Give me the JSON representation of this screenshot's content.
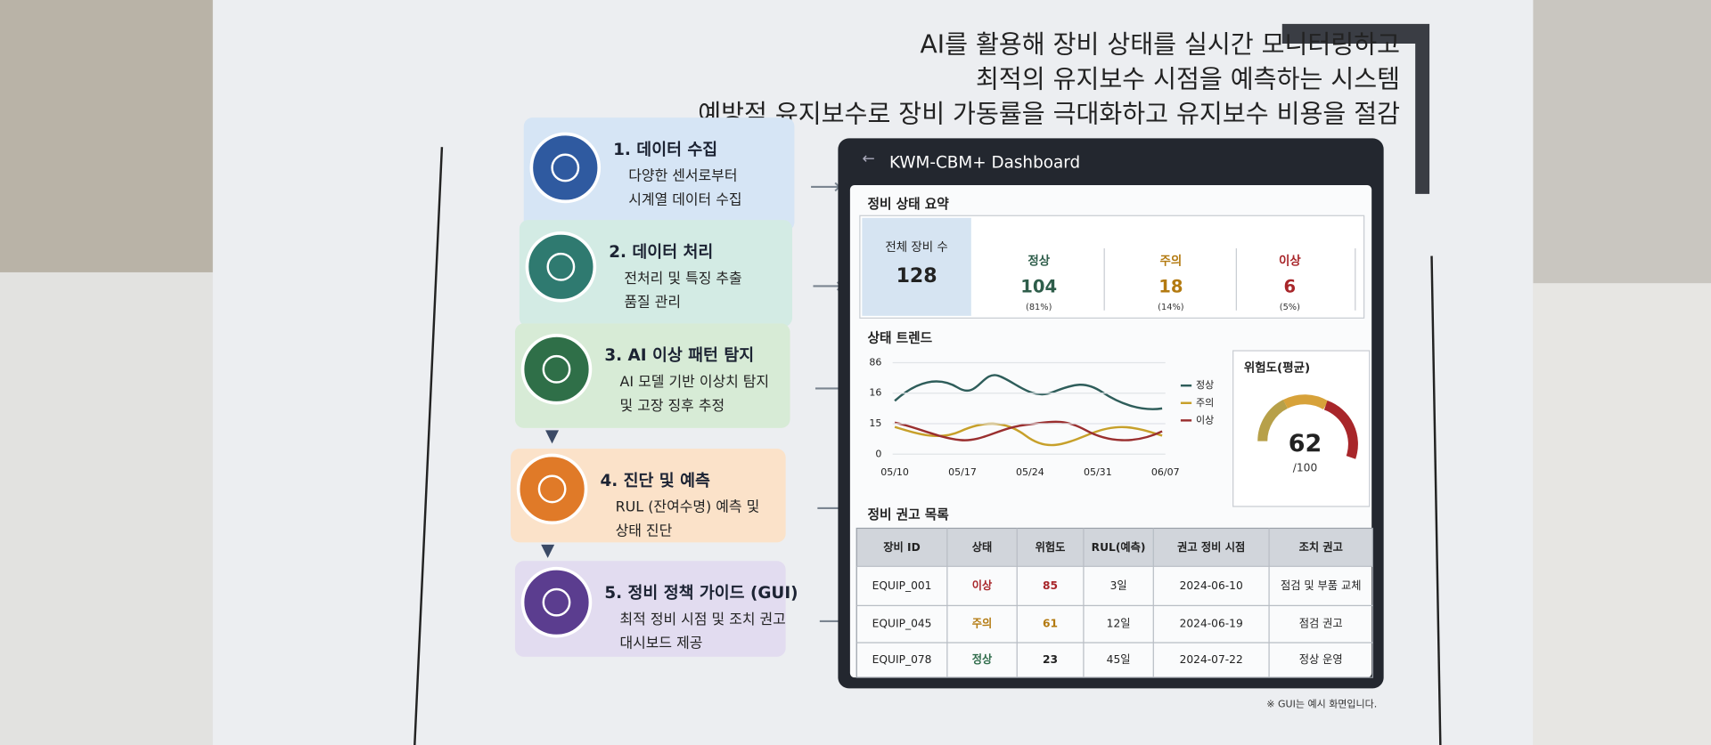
{
  "header": {
    "lines": [
      "AI를 활용해 장비 상태를 실시간 모니터링하고",
      "최적의 유지보수 시점을 예측하는 시스템",
      "예방적 유지보수로 장비 가동률을 극대화하고 유지보수 비용을 절감"
    ]
  },
  "steps": [
    {
      "title": "1. 데이터 수집",
      "desc": [
        "다양한 센서로부터",
        "시계열 데이터 수집"
      ]
    },
    {
      "title": "2. 데이터 처리",
      "desc": [
        "전처리 및 특징 추출",
        "품질 관리"
      ]
    },
    {
      "title": "3. AI 이상 패턴 탐지",
      "desc": [
        "AI 모델 기반 이상치 탐지",
        "및 고장 징후 추정"
      ]
    },
    {
      "title": "4. 진단 및 예측",
      "desc": [
        "RUL (잔여수명) 예측 및",
        "상태 진단"
      ]
    },
    {
      "title": "5. 정비 정책 가이드 (GUI)",
      "desc": [
        "최적 정비 시점 및 조치 권고",
        "대시보드 제공"
      ]
    }
  ],
  "dashboard": {
    "title": "KWM-CBM+ Dashboard",
    "summary": {
      "title": "정비 상태 요약",
      "cells": [
        {
          "label": "전체 장비 수",
          "value": "128"
        },
        {
          "label": "정상",
          "value": "104",
          "pct": "(81%)"
        },
        {
          "label": "주의",
          "value": "18",
          "pct": "(14%)"
        },
        {
          "label": "이상",
          "value": "6",
          "pct": "(5%)"
        }
      ]
    },
    "trend": {
      "title": "상태 트렌드",
      "yticks": [
        "86",
        "16",
        "15",
        "0"
      ],
      "xticks": [
        "05/10",
        "05/17",
        "05/24",
        "05/31",
        "06/07"
      ],
      "legend": [
        "정상",
        "주의",
        "이상"
      ]
    },
    "risk": {
      "title": "위험도(평균)",
      "value": "62",
      "max": "/100"
    },
    "table": {
      "title": "정비 권고 목록",
      "header": [
        "장비 ID",
        "상태",
        "위험도",
        "RUL(예측)",
        "권고 정비 시점",
        "조치 권고"
      ],
      "rows": [
        [
          "EQUIP_001",
          "이상",
          "85",
          "3일",
          "2024-06-10",
          "점검 및 부품 교체"
        ],
        [
          "EQUIP_045",
          "주의",
          "61",
          "12일",
          "2024-06-19",
          "점검 권고"
        ],
        [
          "EQUIP_078",
          "정상",
          "23",
          "45일",
          "2024-07-22",
          "정상 운영"
        ]
      ]
    }
  },
  "footnote": "※ GUI는 예시 화면입니다."
}
